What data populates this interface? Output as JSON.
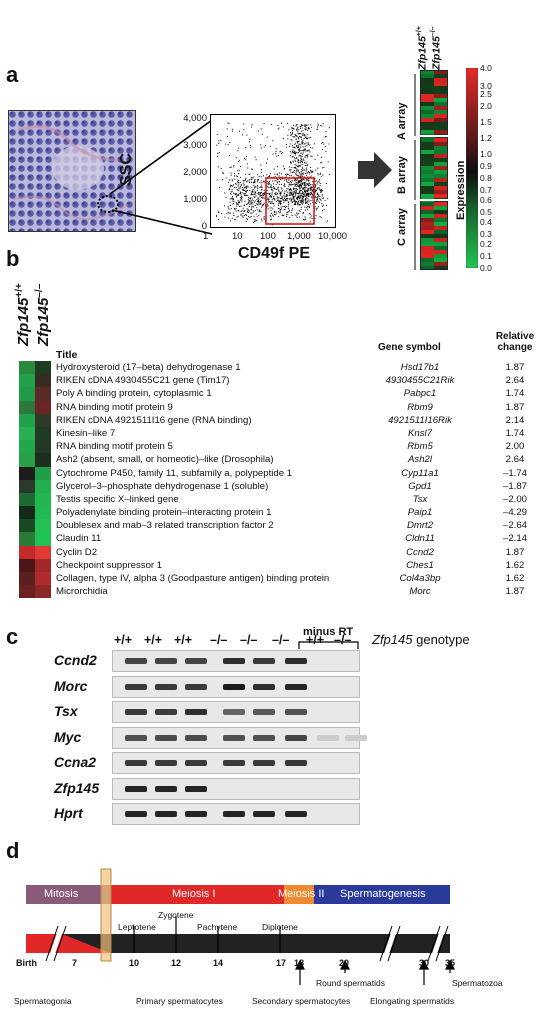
{
  "panel_labels": {
    "a": "a",
    "b": "b",
    "c": "c",
    "d": "d"
  },
  "panel_a": {
    "facs": {
      "y_label": "SSC",
      "x_label": "CD49f PE",
      "y_ticks": [
        "4,000",
        "3,000",
        "2,000",
        "1,000",
        "0"
      ],
      "x_ticks": [
        "1",
        "10",
        "100",
        "1,000",
        "10,000"
      ]
    },
    "heatmap": {
      "genotype_wt": "Zfp145",
      "genotype_wt_sup": "+/+",
      "genotype_ko": "Zfp145",
      "genotype_ko_sup": "–/–",
      "arrays": [
        "A array",
        "B array",
        "C array"
      ],
      "color_scale_label": "Expression",
      "scale_ticks": [
        "4.0",
        "3.0",
        "2.5",
        "2.0",
        "1.5",
        "1.2",
        "1.0",
        "0.9",
        "0.8",
        "0.7",
        "0.6",
        "0.5",
        "0.4",
        "0.3",
        "0.2",
        "0.1",
        "0.0"
      ]
    }
  },
  "panel_b": {
    "genotype_wt": "Zfp145",
    "genotype_wt_sup": "+/+",
    "genotype_ko": "Zfp145",
    "genotype_ko_sup": "–/–",
    "headers": {
      "title": "Title",
      "symbol": "Gene symbol",
      "change_line1": "Relative",
      "change_line2": "change"
    },
    "rows": [
      {
        "title": "Hydroxysteroid (17–beta) dehydrogenase 1",
        "symbol": "Hsd17b1",
        "change": "1.87",
        "wt": "#2a8a3c",
        "ko": "#1e3d1e"
      },
      {
        "title": "RIKEN cDNA 4930455C21 gene      (Tim17)",
        "symbol": "4930455C21Rik",
        "change": "2.64",
        "wt": "#23a04a",
        "ko": "#3a2a24"
      },
      {
        "title": "Poly A binding protein, cytoplasmic 1",
        "symbol": "Pabpc1",
        "change": "1.74",
        "wt": "#1f9a45",
        "ko": "#5a2a26"
      },
      {
        "title": "RNA binding motif protein 9",
        "symbol": "Rbm9",
        "change": "1.87",
        "wt": "#2c7a3a",
        "ko": "#6a2525"
      },
      {
        "title": "RIKEN cDNA 4921511I16 gene      (RNA binding)",
        "symbol": "4921511I16Rik",
        "change": "2.14",
        "wt": "#23a04a",
        "ko": "#2e3a28"
      },
      {
        "title": "Kinesin–like 7",
        "symbol": "Knsl7",
        "change": "1.74",
        "wt": "#2ab050",
        "ko": "#1e3c24"
      },
      {
        "title": "RNA binding motif protein 5",
        "symbol": "Rbm5",
        "change": "2.00",
        "wt": "#20a84a",
        "ko": "#243826"
      },
      {
        "title": "Ash2 (absent, small, or homeotic)–like (Drosophila)",
        "symbol": "Ash2l",
        "change": "2.64",
        "wt": "#28a048",
        "ko": "#1e2e1e"
      },
      {
        "title": "Cytochrome P450, family 11, subfamily a, polypeptide 1",
        "symbol": "Cyp11a1",
        "change": "–1.74",
        "wt": "#1c1c1c",
        "ko": "#1fa047"
      },
      {
        "title": "Glycerol–3–phosphate dehydrogenase 1 (soluble)",
        "symbol": "Gpd1",
        "change": "–1.87",
        "wt": "#2a3a2a",
        "ko": "#22b04e"
      },
      {
        "title": "Testis specific X–linked gene",
        "symbol": "Tsx",
        "change": "–2.00",
        "wt": "#1d6a32",
        "ko": "#20b84f"
      },
      {
        "title": "Polyadenylate binding protein–interacting protein 1",
        "symbol": "Paip1",
        "change": "–4.29",
        "wt": "#142a18",
        "ko": "#1fbb52"
      },
      {
        "title": "Doublesex and mab–3 related transcription factor 2",
        "symbol": "Dmrt2",
        "change": "–2.64",
        "wt": "#1a4a24",
        "ko": "#22c055"
      },
      {
        "title": "Claudin 11",
        "symbol": "Cldn11",
        "change": "–2.14",
        "wt": "#2a7a3a",
        "ko": "#21c254"
      },
      {
        "title": "Cyclin D2",
        "symbol": "Ccnd2",
        "change": "1.87",
        "wt": "#c42a2a",
        "ko": "#e03a34"
      },
      {
        "title": "Checkpoint suppressor 1",
        "symbol": "Ches1",
        "change": "1.62",
        "wt": "#4a1818",
        "ko": "#a22828"
      },
      {
        "title": "Collagen, type IV, alpha 3 (Goodpasture antigen) binding protein",
        "symbol": "Col4a3bp",
        "change": "1.62",
        "wt": "#5a2020",
        "ko": "#b02c2c"
      },
      {
        "title": "Microrchidia",
        "symbol": "Morc",
        "change": "1.87",
        "wt": "#6a2020",
        "ko": "#8a2828"
      }
    ]
  },
  "panel_c": {
    "lane_labels": [
      "+/+",
      "+/+",
      "+/+",
      "–/–",
      "–/–",
      "–/–",
      "+/+",
      "–/–"
    ],
    "minus_rt_label": "minus RT",
    "genotype_label": "Zfp145",
    "genotype_suffix": "genotype",
    "genes": [
      "Ccnd2",
      "Morc",
      "Tsx",
      "Myc",
      "Ccna2",
      "Zfp145",
      "Hprt"
    ]
  },
  "panel_d": {
    "phases": [
      "Mitosis",
      "Meiosis I",
      "Meiosis II",
      "Spermatogenesis"
    ],
    "stages": [
      "Leptotene",
      "Zygotene",
      "Pachytene",
      "Diplotene"
    ],
    "days": [
      "Birth",
      "7",
      "10",
      "12",
      "14",
      "17",
      "18",
      "20",
      "30",
      "35"
    ],
    "cell_types": [
      "Spermatogonia",
      "Primary spermatocytes",
      "Secondary spermatocytes",
      "Round spermatids",
      "Elongating spermatids",
      "Spermatozoa"
    ],
    "colors": {
      "mitosis": "#8a5a7a",
      "meiosis1": "#e02828",
      "meiosis2": "#f08a30",
      "spermatogenesis": "#2a3a9a",
      "highlight": "#f2c27a"
    }
  }
}
